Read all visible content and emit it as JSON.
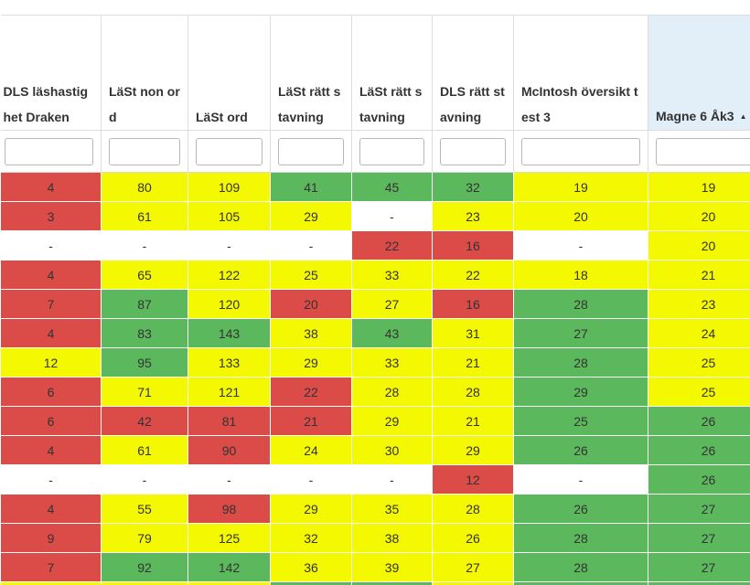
{
  "columns": [
    {
      "label": "DLS läshastighet Draken",
      "filter_placeholder": ""
    },
    {
      "label": "LäSt non ord",
      "filter_placeholder": ""
    },
    {
      "label": "LäSt ord",
      "filter_placeholder": ""
    },
    {
      "label": "LäSt rätt stavning",
      "filter_placeholder": ""
    },
    {
      "label": "LäSt rätt stavning",
      "filter_placeholder": ""
    },
    {
      "label": "DLS rätt stavning",
      "filter_placeholder": ""
    },
    {
      "label": "McIntosh översikt test 3",
      "filter_placeholder": ""
    },
    {
      "label": "Magne 6 Åk3",
      "filter_placeholder": ""
    }
  ],
  "sorted_column_index": 7,
  "sort_direction": "ascending",
  "sort_icon": "triangle-up-icon",
  "colors": {
    "red": "#db4b47",
    "yellow": "#f4f800",
    "green": "#5cb85c",
    "sorted_header": "#e2eef8"
  },
  "rows": [
    [
      {
        "v": "4",
        "c": "red"
      },
      {
        "v": "80",
        "c": "yellow"
      },
      {
        "v": "109",
        "c": "yellow"
      },
      {
        "v": "41",
        "c": "green"
      },
      {
        "v": "45",
        "c": "green"
      },
      {
        "v": "32",
        "c": "green"
      },
      {
        "v": "19",
        "c": "yellow"
      },
      {
        "v": "19",
        "c": "yellow"
      }
    ],
    [
      {
        "v": "3",
        "c": "red"
      },
      {
        "v": "61",
        "c": "yellow"
      },
      {
        "v": "105",
        "c": "yellow"
      },
      {
        "v": "29",
        "c": "yellow"
      },
      {
        "v": "-",
        "c": "blank"
      },
      {
        "v": "23",
        "c": "yellow"
      },
      {
        "v": "20",
        "c": "yellow"
      },
      {
        "v": "20",
        "c": "yellow"
      }
    ],
    [
      {
        "v": "-",
        "c": "blank"
      },
      {
        "v": "-",
        "c": "blank"
      },
      {
        "v": "-",
        "c": "blank"
      },
      {
        "v": "-",
        "c": "blank"
      },
      {
        "v": "22",
        "c": "red"
      },
      {
        "v": "16",
        "c": "red"
      },
      {
        "v": "-",
        "c": "blank"
      },
      {
        "v": "20",
        "c": "yellow"
      }
    ],
    [
      {
        "v": "4",
        "c": "red"
      },
      {
        "v": "65",
        "c": "yellow"
      },
      {
        "v": "122",
        "c": "yellow"
      },
      {
        "v": "25",
        "c": "yellow"
      },
      {
        "v": "33",
        "c": "yellow"
      },
      {
        "v": "22",
        "c": "yellow"
      },
      {
        "v": "18",
        "c": "yellow"
      },
      {
        "v": "21",
        "c": "yellow"
      }
    ],
    [
      {
        "v": "7",
        "c": "red"
      },
      {
        "v": "87",
        "c": "green"
      },
      {
        "v": "120",
        "c": "yellow"
      },
      {
        "v": "20",
        "c": "red"
      },
      {
        "v": "27",
        "c": "yellow"
      },
      {
        "v": "16",
        "c": "red"
      },
      {
        "v": "28",
        "c": "green"
      },
      {
        "v": "23",
        "c": "yellow"
      }
    ],
    [
      {
        "v": "4",
        "c": "red"
      },
      {
        "v": "83",
        "c": "green"
      },
      {
        "v": "143",
        "c": "green"
      },
      {
        "v": "38",
        "c": "yellow"
      },
      {
        "v": "43",
        "c": "green"
      },
      {
        "v": "31",
        "c": "yellow"
      },
      {
        "v": "27",
        "c": "green"
      },
      {
        "v": "24",
        "c": "yellow"
      }
    ],
    [
      {
        "v": "12",
        "c": "yellow"
      },
      {
        "v": "95",
        "c": "green"
      },
      {
        "v": "133",
        "c": "yellow"
      },
      {
        "v": "29",
        "c": "yellow"
      },
      {
        "v": "33",
        "c": "yellow"
      },
      {
        "v": "21",
        "c": "yellow"
      },
      {
        "v": "28",
        "c": "green"
      },
      {
        "v": "25",
        "c": "yellow"
      }
    ],
    [
      {
        "v": "6",
        "c": "red"
      },
      {
        "v": "71",
        "c": "yellow"
      },
      {
        "v": "121",
        "c": "yellow"
      },
      {
        "v": "22",
        "c": "red"
      },
      {
        "v": "28",
        "c": "yellow"
      },
      {
        "v": "28",
        "c": "yellow"
      },
      {
        "v": "29",
        "c": "green"
      },
      {
        "v": "25",
        "c": "yellow"
      }
    ],
    [
      {
        "v": "6",
        "c": "red"
      },
      {
        "v": "42",
        "c": "red"
      },
      {
        "v": "81",
        "c": "red"
      },
      {
        "v": "21",
        "c": "red"
      },
      {
        "v": "29",
        "c": "yellow"
      },
      {
        "v": "21",
        "c": "yellow"
      },
      {
        "v": "25",
        "c": "green"
      },
      {
        "v": "26",
        "c": "green"
      }
    ],
    [
      {
        "v": "4",
        "c": "red"
      },
      {
        "v": "61",
        "c": "yellow"
      },
      {
        "v": "90",
        "c": "red"
      },
      {
        "v": "24",
        "c": "yellow"
      },
      {
        "v": "30",
        "c": "yellow"
      },
      {
        "v": "29",
        "c": "yellow"
      },
      {
        "v": "26",
        "c": "green"
      },
      {
        "v": "26",
        "c": "green"
      }
    ],
    [
      {
        "v": "-",
        "c": "blank"
      },
      {
        "v": "-",
        "c": "blank"
      },
      {
        "v": "-",
        "c": "blank"
      },
      {
        "v": "-",
        "c": "blank"
      },
      {
        "v": "-",
        "c": "blank"
      },
      {
        "v": "12",
        "c": "red"
      },
      {
        "v": "-",
        "c": "blank"
      },
      {
        "v": "26",
        "c": "green"
      }
    ],
    [
      {
        "v": "4",
        "c": "red"
      },
      {
        "v": "55",
        "c": "yellow"
      },
      {
        "v": "98",
        "c": "red"
      },
      {
        "v": "29",
        "c": "yellow"
      },
      {
        "v": "35",
        "c": "yellow"
      },
      {
        "v": "28",
        "c": "yellow"
      },
      {
        "v": "26",
        "c": "green"
      },
      {
        "v": "27",
        "c": "green"
      }
    ],
    [
      {
        "v": "9",
        "c": "red"
      },
      {
        "v": "79",
        "c": "yellow"
      },
      {
        "v": "125",
        "c": "yellow"
      },
      {
        "v": "32",
        "c": "yellow"
      },
      {
        "v": "38",
        "c": "yellow"
      },
      {
        "v": "26",
        "c": "yellow"
      },
      {
        "v": "28",
        "c": "green"
      },
      {
        "v": "27",
        "c": "green"
      }
    ],
    [
      {
        "v": "7",
        "c": "red"
      },
      {
        "v": "92",
        "c": "green"
      },
      {
        "v": "142",
        "c": "green"
      },
      {
        "v": "36",
        "c": "yellow"
      },
      {
        "v": "39",
        "c": "yellow"
      },
      {
        "v": "27",
        "c": "yellow"
      },
      {
        "v": "28",
        "c": "green"
      },
      {
        "v": "27",
        "c": "green"
      }
    ],
    [
      {
        "v": "",
        "c": "yellow"
      },
      {
        "v": "",
        "c": "yellow"
      },
      {
        "v": "",
        "c": "yellow"
      },
      {
        "v": "",
        "c": "green"
      },
      {
        "v": "",
        "c": "green"
      },
      {
        "v": "",
        "c": "yellow"
      },
      {
        "v": "",
        "c": "green"
      },
      {
        "v": "",
        "c": "green"
      }
    ]
  ]
}
